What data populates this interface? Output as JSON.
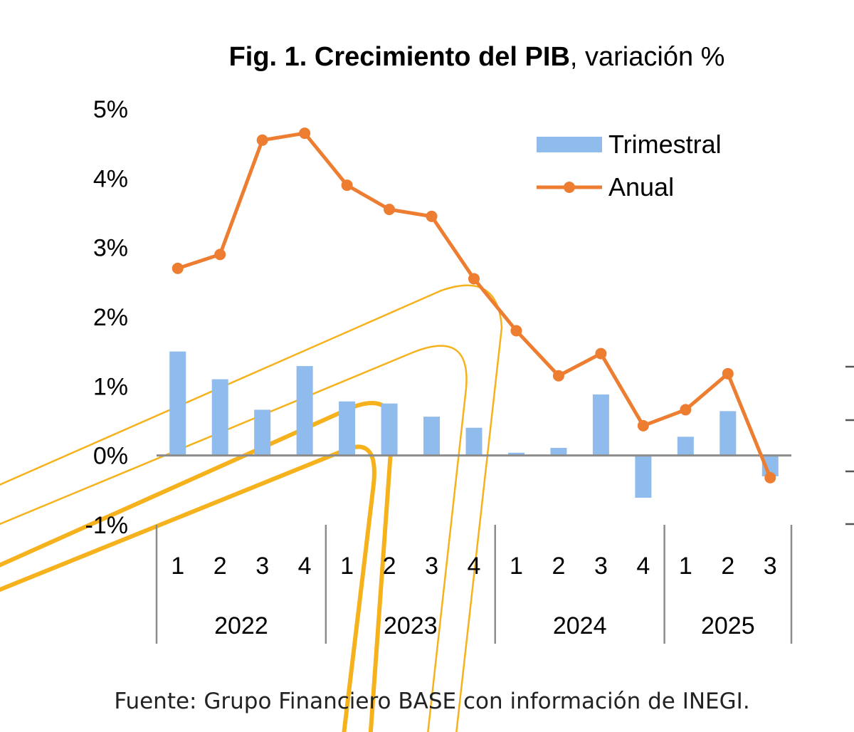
{
  "chart_data": {
    "type": "bar",
    "title": "Fig. 1. Crecimiento del PIB",
    "subtitle": ", variación %",
    "source": "Fuente: Grupo Financiero BASE con información de INEGI.",
    "categories": [
      "1",
      "2",
      "3",
      "4",
      "1",
      "2",
      "3",
      "4",
      "1",
      "2",
      "3",
      "4",
      "1",
      "2",
      "3"
    ],
    "groups": [
      {
        "label": "2022",
        "count": 4
      },
      {
        "label": "2023",
        "count": 4
      },
      {
        "label": "2024",
        "count": 4
      },
      {
        "label": "2025",
        "count": 3
      }
    ],
    "series": [
      {
        "name": "Trimestral",
        "kind": "bar",
        "color": "#8fbcec",
        "values": [
          1.5,
          1.1,
          0.66,
          1.29,
          0.78,
          0.75,
          0.56,
          0.4,
          0.04,
          0.11,
          0.88,
          -0.61,
          0.27,
          0.64,
          -0.3
        ]
      },
      {
        "name": "Anual",
        "kind": "line",
        "color": "#ec7d31",
        "values": [
          2.7,
          2.9,
          4.55,
          4.65,
          3.9,
          3.55,
          3.45,
          2.55,
          1.8,
          1.15,
          1.47,
          0.43,
          0.66,
          1.18,
          -0.32
        ]
      }
    ],
    "ylim": [
      -1,
      5
    ],
    "yticks": [
      -1,
      0,
      1,
      2,
      3,
      4,
      5
    ],
    "ytick_labels": [
      "-1%",
      "0%",
      "1%",
      "2%",
      "3%",
      "4%",
      "5%"
    ],
    "legend_position": "top-right",
    "grid": false
  }
}
